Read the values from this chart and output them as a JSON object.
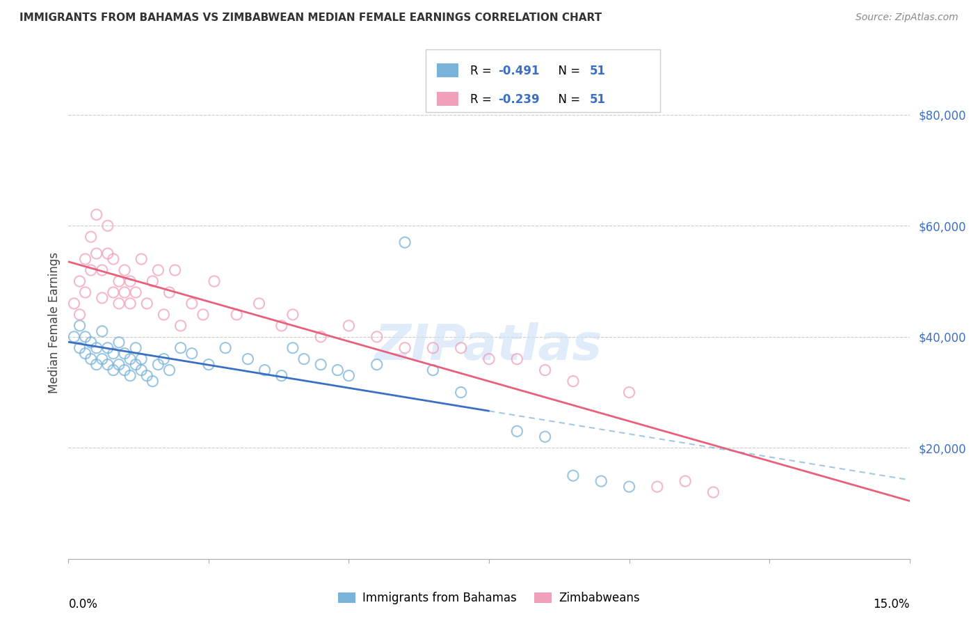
{
  "title": "IMMIGRANTS FROM BAHAMAS VS ZIMBABWEAN MEDIAN FEMALE EARNINGS CORRELATION CHART",
  "source": "Source: ZipAtlas.com",
  "ylabel": "Median Female Earnings",
  "yticks": [
    20000,
    40000,
    60000,
    80000
  ],
  "ytick_labels": [
    "$20,000",
    "$40,000",
    "$60,000",
    "$80,000"
  ],
  "blue_color": "#7ab3d9",
  "pink_color": "#f0a0b8",
  "line_blue": "#3a6fc4",
  "line_pink": "#e8607a",
  "axis_label_color": "#3a6fc4",
  "title_color": "#333333",
  "source_color": "#888888",
  "xlim": [
    0.0,
    0.15
  ],
  "ylim": [
    0,
    85000
  ],
  "bahamas_x": [
    0.001,
    0.002,
    0.002,
    0.003,
    0.003,
    0.004,
    0.004,
    0.005,
    0.005,
    0.006,
    0.006,
    0.007,
    0.007,
    0.008,
    0.008,
    0.009,
    0.009,
    0.01,
    0.01,
    0.011,
    0.011,
    0.012,
    0.012,
    0.013,
    0.013,
    0.014,
    0.015,
    0.016,
    0.017,
    0.018,
    0.02,
    0.022,
    0.025,
    0.028,
    0.032,
    0.035,
    0.038,
    0.04,
    0.042,
    0.045,
    0.048,
    0.05,
    0.055,
    0.06,
    0.065,
    0.07,
    0.08,
    0.085,
    0.09,
    0.095,
    0.1
  ],
  "bahamas_y": [
    40000,
    38000,
    42000,
    37000,
    40000,
    36000,
    39000,
    35000,
    38000,
    36000,
    41000,
    35000,
    38000,
    34000,
    37000,
    35000,
    39000,
    34000,
    37000,
    33000,
    36000,
    35000,
    38000,
    34000,
    36000,
    33000,
    32000,
    35000,
    36000,
    34000,
    38000,
    37000,
    35000,
    38000,
    36000,
    34000,
    33000,
    38000,
    36000,
    35000,
    34000,
    33000,
    35000,
    57000,
    34000,
    30000,
    23000,
    22000,
    15000,
    14000,
    13000
  ],
  "zimbabwe_x": [
    0.001,
    0.002,
    0.002,
    0.003,
    0.003,
    0.004,
    0.004,
    0.005,
    0.005,
    0.006,
    0.006,
    0.007,
    0.007,
    0.008,
    0.008,
    0.009,
    0.009,
    0.01,
    0.01,
    0.011,
    0.011,
    0.012,
    0.013,
    0.014,
    0.015,
    0.016,
    0.017,
    0.018,
    0.019,
    0.02,
    0.022,
    0.024,
    0.026,
    0.03,
    0.034,
    0.038,
    0.04,
    0.045,
    0.05,
    0.055,
    0.06,
    0.065,
    0.07,
    0.075,
    0.08,
    0.085,
    0.09,
    0.1,
    0.105,
    0.11,
    0.115
  ],
  "zimbabwe_y": [
    46000,
    44000,
    50000,
    48000,
    54000,
    52000,
    58000,
    55000,
    62000,
    47000,
    52000,
    55000,
    60000,
    48000,
    54000,
    46000,
    50000,
    48000,
    52000,
    46000,
    50000,
    48000,
    54000,
    46000,
    50000,
    52000,
    44000,
    48000,
    52000,
    42000,
    46000,
    44000,
    50000,
    44000,
    46000,
    42000,
    44000,
    40000,
    42000,
    40000,
    38000,
    38000,
    38000,
    36000,
    36000,
    34000,
    32000,
    30000,
    13000,
    14000,
    12000
  ]
}
